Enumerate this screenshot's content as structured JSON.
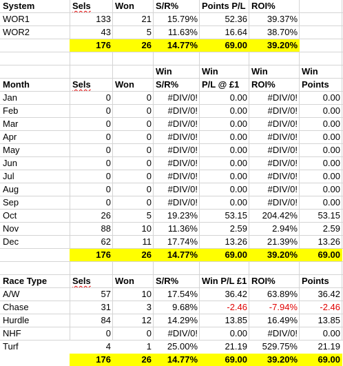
{
  "section1": {
    "headers": [
      "System",
      "Sels",
      "Won",
      "S/R%",
      "Points P/L",
      "ROI%"
    ],
    "rows": [
      [
        "WOR1",
        "133",
        "21",
        "15.79%",
        "52.36",
        "39.37%"
      ],
      [
        "WOR2",
        "43",
        "5",
        "11.63%",
        "16.64",
        "38.70%"
      ]
    ],
    "total": [
      "176",
      "26",
      "14.77%",
      "69.00",
      "39.20%"
    ]
  },
  "section2": {
    "header_top": [
      "Win",
      "Win",
      "Win",
      "Win"
    ],
    "headers": [
      "Month",
      "Sels",
      "Won",
      "S/R%",
      "P/L @ £1",
      "ROI%",
      "Points"
    ],
    "rows": [
      [
        "Jan",
        "0",
        "0",
        "#DIV/0!",
        "0.00",
        "#DIV/0!",
        "0.00"
      ],
      [
        "Feb",
        "0",
        "0",
        "#DIV/0!",
        "0.00",
        "#DIV/0!",
        "0.00"
      ],
      [
        "Mar",
        "0",
        "0",
        "#DIV/0!",
        "0.00",
        "#DIV/0!",
        "0.00"
      ],
      [
        "Apr",
        "0",
        "0",
        "#DIV/0!",
        "0.00",
        "#DIV/0!",
        "0.00"
      ],
      [
        "May",
        "0",
        "0",
        "#DIV/0!",
        "0.00",
        "#DIV/0!",
        "0.00"
      ],
      [
        "Jun",
        "0",
        "0",
        "#DIV/0!",
        "0.00",
        "#DIV/0!",
        "0.00"
      ],
      [
        "Jul",
        "0",
        "0",
        "#DIV/0!",
        "0.00",
        "#DIV/0!",
        "0.00"
      ],
      [
        "Aug",
        "0",
        "0",
        "#DIV/0!",
        "0.00",
        "#DIV/0!",
        "0.00"
      ],
      [
        "Sep",
        "0",
        "0",
        "#DIV/0!",
        "0.00",
        "#DIV/0!",
        "0.00"
      ],
      [
        "Oct",
        "26",
        "5",
        "19.23%",
        "53.15",
        "204.42%",
        "53.15"
      ],
      [
        "Nov",
        "88",
        "10",
        "11.36%",
        "2.59",
        "2.94%",
        "2.59"
      ],
      [
        "Dec",
        "62",
        "11",
        "17.74%",
        "13.26",
        "21.39%",
        "13.26"
      ]
    ],
    "total": [
      "176",
      "26",
      "14.77%",
      "69.00",
      "39.20%",
      "69.00"
    ]
  },
  "section3": {
    "headers": [
      "Race Type",
      "Sels",
      "Won",
      "S/R%",
      "Win P/L £1",
      "ROI%",
      "Points"
    ],
    "rows": [
      [
        "A/W",
        "57",
        "10",
        "17.54%",
        "36.42",
        "63.89%",
        "36.42"
      ],
      [
        "Chase",
        "31",
        "3",
        "9.68%",
        "-2.46",
        "-7.94%",
        "-2.46"
      ],
      [
        "Hurdle",
        "84",
        "12",
        "14.29%",
        "13.85",
        "16.49%",
        "13.85"
      ],
      [
        "NHF",
        "0",
        "0",
        "#DIV/0!",
        "0.00",
        "#DIV/0!",
        "0.00"
      ],
      [
        "Turf",
        "4",
        "1",
        "25.00%",
        "21.19",
        "529.75%",
        "21.19"
      ]
    ],
    "total": [
      "176",
      "26",
      "14.77%",
      "69.00",
      "39.20%",
      "69.00"
    ]
  },
  "colors": {
    "highlight": "#ffff00",
    "negative": "#e00000",
    "grid": "#d4d4d4"
  }
}
